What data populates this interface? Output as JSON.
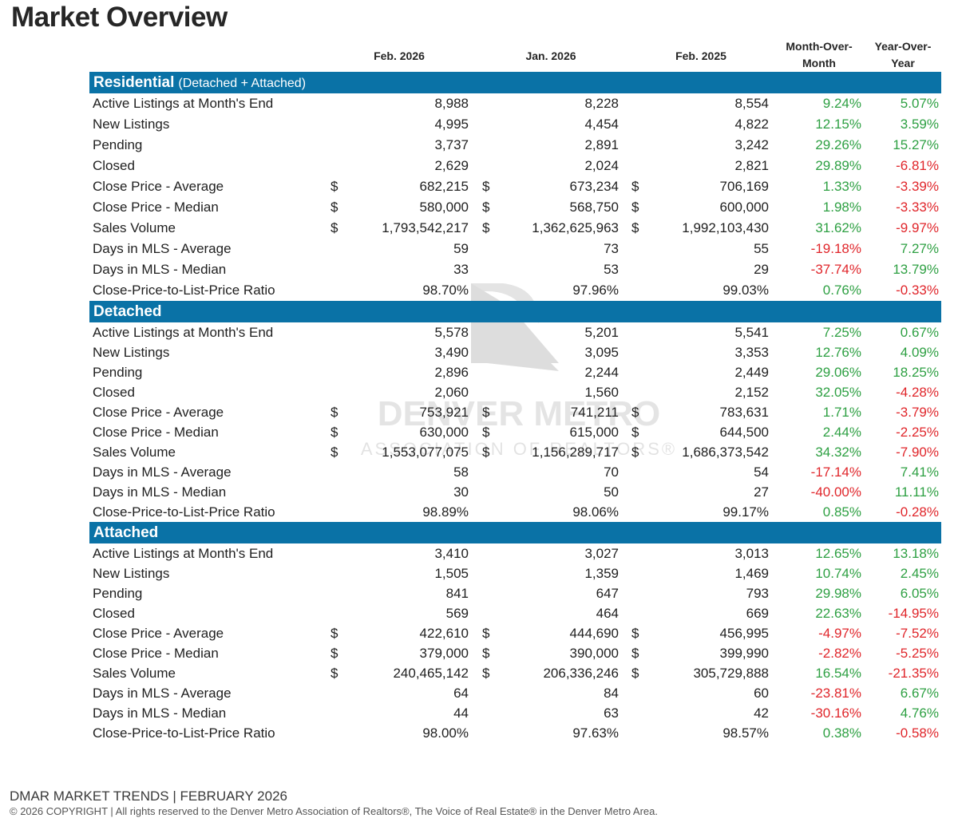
{
  "page": {
    "title": "Market Overview"
  },
  "columns": {
    "current": "Feb. 2026",
    "prior_month": "Jan. 2026",
    "prior_year": "Feb. 2025",
    "mom_line1": "Month-Over-",
    "mom_line2": "Month",
    "yoy_line1": "Year-Over-",
    "yoy_line2": "Year"
  },
  "watermark": {
    "line1": "DENVER METRO",
    "line2": "ASSOCIATION OF REALTORS®"
  },
  "colors": {
    "section_header": "#0a72a6",
    "positive": "#2ea043",
    "negative": "#e0262b"
  },
  "sections": [
    {
      "title": "Residential",
      "subtitle": "(Detached + Attached)",
      "rows": [
        {
          "label": "Active Listings at Month's End",
          "dollar": false,
          "v1": "8,988",
          "v2": "8,228",
          "v3": "8,554",
          "mom": "9.24%",
          "yoy": "5.07%"
        },
        {
          "label": "New Listings",
          "dollar": false,
          "v1": "4,995",
          "v2": "4,454",
          "v3": "4,822",
          "mom": "12.15%",
          "yoy": "3.59%"
        },
        {
          "label": "Pending",
          "dollar": false,
          "v1": "3,737",
          "v2": "2,891",
          "v3": "3,242",
          "mom": "29.26%",
          "yoy": "15.27%"
        },
        {
          "label": "Closed",
          "dollar": false,
          "v1": "2,629",
          "v2": "2,024",
          "v3": "2,821",
          "mom": "29.89%",
          "yoy": "-6.81%"
        },
        {
          "label": "Close Price - Average",
          "dollar": true,
          "v1": "682,215",
          "v2": "673,234",
          "v3": "706,169",
          "mom": "1.33%",
          "yoy": "-3.39%"
        },
        {
          "label": "Close Price - Median",
          "dollar": true,
          "v1": "580,000",
          "v2": "568,750",
          "v3": "600,000",
          "mom": "1.98%",
          "yoy": "-3.33%"
        },
        {
          "label": "Sales Volume",
          "dollar": true,
          "v1": "1,793,542,217",
          "v2": "1,362,625,963",
          "v3": "1,992,103,430",
          "mom": "31.62%",
          "yoy": "-9.97%"
        },
        {
          "label": "Days in MLS - Average",
          "dollar": false,
          "v1": "59",
          "v2": "73",
          "v3": "55",
          "mom": "-19.18%",
          "yoy": "7.27%"
        },
        {
          "label": "Days in MLS - Median",
          "dollar": false,
          "v1": "33",
          "v2": "53",
          "v3": "29",
          "mom": "-37.74%",
          "yoy": "13.79%"
        },
        {
          "label": "Close-Price-to-List-Price Ratio",
          "dollar": false,
          "v1": "98.70%",
          "v2": "97.96%",
          "v3": "99.03%",
          "mom": "0.76%",
          "yoy": "-0.33%"
        }
      ]
    },
    {
      "title": "Detached",
      "subtitle": "",
      "rows": [
        {
          "label": "Active Listings at Month's End",
          "dollar": false,
          "v1": "5,578",
          "v2": "5,201",
          "v3": "5,541",
          "mom": "7.25%",
          "yoy": "0.67%"
        },
        {
          "label": "New Listings",
          "dollar": false,
          "v1": "3,490",
          "v2": "3,095",
          "v3": "3,353",
          "mom": "12.76%",
          "yoy": "4.09%"
        },
        {
          "label": "Pending",
          "dollar": false,
          "v1": "2,896",
          "v2": "2,244",
          "v3": "2,449",
          "mom": "29.06%",
          "yoy": "18.25%"
        },
        {
          "label": "Closed",
          "dollar": false,
          "v1": "2,060",
          "v2": "1,560",
          "v3": "2,152",
          "mom": "32.05%",
          "yoy": "-4.28%"
        },
        {
          "label": "Close Price - Average",
          "dollar": true,
          "v1": "753,921",
          "v2": "741,211",
          "v3": "783,631",
          "mom": "1.71%",
          "yoy": "-3.79%"
        },
        {
          "label": "Close Price - Median",
          "dollar": true,
          "v1": "630,000",
          "v2": "615,000",
          "v3": "644,500",
          "mom": "2.44%",
          "yoy": "-2.25%"
        },
        {
          "label": "Sales Volume",
          "dollar": true,
          "v1": "1,553,077,075",
          "v2": "1,156,289,717",
          "v3": "1,686,373,542",
          "mom": "34.32%",
          "yoy": "-7.90%"
        },
        {
          "label": "Days in MLS - Average",
          "dollar": false,
          "v1": "58",
          "v2": "70",
          "v3": "54",
          "mom": "-17.14%",
          "yoy": "7.41%"
        },
        {
          "label": "Days in MLS - Median",
          "dollar": false,
          "v1": "30",
          "v2": "50",
          "v3": "27",
          "mom": "-40.00%",
          "yoy": "11.11%"
        },
        {
          "label": "Close-Price-to-List-Price Ratio",
          "dollar": false,
          "v1": "98.89%",
          "v2": "98.06%",
          "v3": "99.17%",
          "mom": "0.85%",
          "yoy": "-0.28%"
        }
      ]
    },
    {
      "title": "Attached",
      "subtitle": "",
      "rows": [
        {
          "label": "Active Listings at Month's End",
          "dollar": false,
          "v1": "3,410",
          "v2": "3,027",
          "v3": "3,013",
          "mom": "12.65%",
          "yoy": "13.18%"
        },
        {
          "label": "New Listings",
          "dollar": false,
          "v1": "1,505",
          "v2": "1,359",
          "v3": "1,469",
          "mom": "10.74%",
          "yoy": "2.45%"
        },
        {
          "label": "Pending",
          "dollar": false,
          "v1": "841",
          "v2": "647",
          "v3": "793",
          "mom": "29.98%",
          "yoy": "6.05%"
        },
        {
          "label": "Closed",
          "dollar": false,
          "v1": "569",
          "v2": "464",
          "v3": "669",
          "mom": "22.63%",
          "yoy": "-14.95%"
        },
        {
          "label": "Close Price - Average",
          "dollar": true,
          "v1": "422,610",
          "v2": "444,690",
          "v3": "456,995",
          "mom": "-4.97%",
          "yoy": "-7.52%"
        },
        {
          "label": "Close Price - Median",
          "dollar": true,
          "v1": "379,000",
          "v2": "390,000",
          "v3": "399,990",
          "mom": "-2.82%",
          "yoy": "-5.25%"
        },
        {
          "label": "Sales Volume",
          "dollar": true,
          "v1": "240,465,142",
          "v2": "206,336,246",
          "v3": "305,729,888",
          "mom": "16.54%",
          "yoy": "-21.35%"
        },
        {
          "label": "Days in MLS - Average",
          "dollar": false,
          "v1": "64",
          "v2": "84",
          "v3": "60",
          "mom": "-23.81%",
          "yoy": "6.67%"
        },
        {
          "label": "Days in MLS - Median",
          "dollar": false,
          "v1": "44",
          "v2": "63",
          "v3": "42",
          "mom": "-30.16%",
          "yoy": "4.76%"
        },
        {
          "label": "Close-Price-to-List-Price Ratio",
          "dollar": false,
          "v1": "98.00%",
          "v2": "97.63%",
          "v3": "98.57%",
          "mom": "0.38%",
          "yoy": "-0.58%"
        }
      ]
    }
  ],
  "footer": {
    "title": "DMAR MARKET TRENDS | FEBRUARY 2026",
    "copyright": "© 2026 COPYRIGHT | All rights reserved to the Denver Metro Association of Realtors®, The Voice of Real Estate® in the Denver Metro Area."
  }
}
